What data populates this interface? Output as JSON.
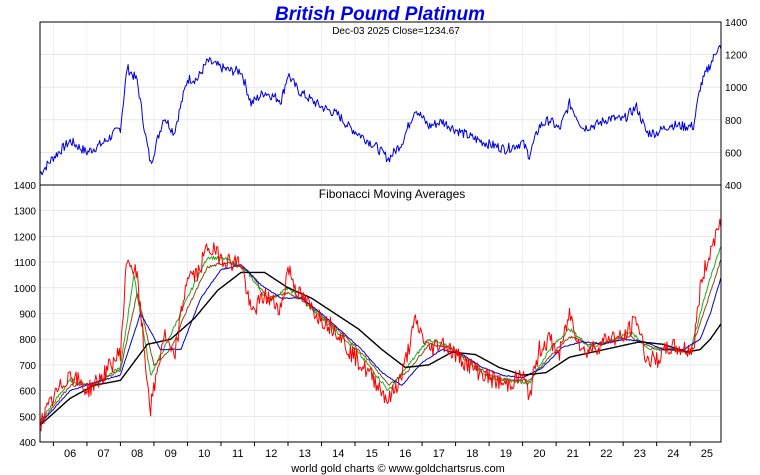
{
  "chart_data": [
    {
      "type": "line",
      "title": "British Pound Platinum",
      "subtitle": "Dec-03  2025   Close=1234.67",
      "xlabel": "",
      "ylabel": "",
      "x_ticks": [
        "06",
        "07",
        "08",
        "09",
        "10",
        "11",
        "12",
        "13",
        "14",
        "15",
        "16",
        "17",
        "18",
        "19",
        "20",
        "21",
        "22",
        "23",
        "24",
        "25"
      ],
      "ylim": [
        400,
        1400
      ],
      "y_ticks": [
        400,
        600,
        800,
        1000,
        1200,
        1400
      ],
      "y_tick_labels": [
        "400",
        "600",
        "800",
        "1000",
        "1200",
        "1400"
      ],
      "y_axis_side": "right",
      "grid": true,
      "series": [
        {
          "color": "#0000dd",
          "x": [
            2005.6,
            2006.0,
            2006.5,
            2007.0,
            2007.5,
            2008.0,
            2008.2,
            2008.5,
            2008.75,
            2008.9,
            2009.3,
            2009.6,
            2010.0,
            2010.3,
            2010.6,
            2011.0,
            2011.3,
            2011.6,
            2011.9,
            2012.3,
            2012.8,
            2013.0,
            2013.3,
            2013.7,
            2014.0,
            2014.5,
            2014.8,
            2015.2,
            2015.6,
            2016.0,
            2016.4,
            2016.8,
            2017.2,
            2017.6,
            2018.0,
            2018.5,
            2019.0,
            2019.5,
            2020.0,
            2020.2,
            2020.5,
            2020.8,
            2021.1,
            2021.4,
            2021.8,
            2022.2,
            2022.6,
            2023.0,
            2023.4,
            2023.7,
            2024.0,
            2024.4,
            2024.8,
            2025.1,
            2025.3,
            2025.5,
            2025.7,
            2025.85,
            2025.92
          ],
          "values": [
            470,
            570,
            670,
            600,
            660,
            750,
            1120,
            1040,
            700,
            530,
            820,
            720,
            1050,
            1050,
            1160,
            1120,
            1100,
            1100,
            900,
            970,
            920,
            1080,
            980,
            920,
            880,
            830,
            760,
            700,
            640,
            560,
            660,
            870,
            760,
            790,
            740,
            690,
            650,
            620,
            660,
            580,
            760,
            800,
            740,
            900,
            750,
            770,
            810,
            800,
            880,
            720,
            720,
            770,
            760,
            760,
            1000,
            1100,
            1180,
            1260,
            1234.67
          ]
        }
      ]
    },
    {
      "type": "line",
      "title": "Fibonacci Moving Averages",
      "xlabel": "",
      "ylabel": "",
      "x_ticks": [
        "06",
        "07",
        "08",
        "09",
        "10",
        "11",
        "12",
        "13",
        "14",
        "15",
        "16",
        "17",
        "18",
        "19",
        "20",
        "21",
        "22",
        "23",
        "24",
        "25"
      ],
      "ylim": [
        400,
        1400
      ],
      "y_ticks": [
        400,
        500,
        600,
        700,
        800,
        900,
        1000,
        1100,
        1200,
        1300,
        1400
      ],
      "y_tick_labels": [
        "400",
        "500",
        "600",
        "700",
        "800",
        "900",
        "1000",
        "1100",
        "1200",
        "1300",
        "1400"
      ],
      "y_axis_side": "left",
      "grid": true,
      "series": [
        {
          "color": "#ff0000",
          "x": [
            2005.6,
            2006.0,
            2006.5,
            2007.0,
            2007.5,
            2008.0,
            2008.2,
            2008.5,
            2008.75,
            2008.9,
            2009.3,
            2009.6,
            2010.0,
            2010.3,
            2010.6,
            2011.0,
            2011.3,
            2011.6,
            2011.9,
            2012.3,
            2012.8,
            2013.0,
            2013.3,
            2013.7,
            2014.0,
            2014.5,
            2014.8,
            2015.2,
            2015.6,
            2016.0,
            2016.4,
            2016.8,
            2017.2,
            2017.6,
            2018.0,
            2018.5,
            2019.0,
            2019.5,
            2020.0,
            2020.2,
            2020.5,
            2020.8,
            2021.1,
            2021.4,
            2021.8,
            2022.2,
            2022.6,
            2023.0,
            2023.4,
            2023.7,
            2024.0,
            2024.4,
            2024.8,
            2025.1,
            2025.3,
            2025.5,
            2025.7,
            2025.85,
            2025.92
          ],
          "values": [
            470,
            570,
            670,
            600,
            660,
            750,
            1120,
            1040,
            700,
            530,
            820,
            720,
            1050,
            1050,
            1160,
            1120,
            1100,
            1100,
            900,
            970,
            920,
            1080,
            980,
            920,
            880,
            830,
            760,
            700,
            640,
            560,
            660,
            870,
            760,
            790,
            740,
            690,
            650,
            620,
            660,
            580,
            760,
            800,
            740,
            900,
            750,
            770,
            810,
            800,
            880,
            720,
            720,
            770,
            760,
            760,
            1000,
            1100,
            1180,
            1260,
            1234.67
          ]
        },
        {
          "color": "#22aa22",
          "x": [
            2005.6,
            2006.5,
            2007.2,
            2008.0,
            2008.4,
            2008.9,
            2009.4,
            2010.0,
            2010.6,
            2011.2,
            2011.8,
            2012.4,
            2013.0,
            2013.6,
            2014.2,
            2014.8,
            2015.4,
            2016.0,
            2016.6,
            2017.2,
            2017.8,
            2018.4,
            2019.0,
            2019.6,
            2020.2,
            2020.8,
            2021.4,
            2022.0,
            2022.6,
            2023.2,
            2023.8,
            2024.4,
            2025.0,
            2025.4,
            2025.7,
            2025.92
          ],
          "values": [
            480,
            640,
            620,
            690,
            1050,
            660,
            790,
            960,
            1120,
            1110,
            1060,
            950,
            1000,
            930,
            860,
            790,
            700,
            600,
            700,
            800,
            770,
            710,
            650,
            640,
            630,
            760,
            840,
            770,
            790,
            830,
            760,
            760,
            750,
            950,
            1080,
            1160
          ]
        },
        {
          "color": "#8a4a1a",
          "x": [
            2005.6,
            2006.5,
            2007.2,
            2008.0,
            2008.5,
            2009.0,
            2009.5,
            2010.0,
            2010.6,
            2011.2,
            2011.8,
            2012.4,
            2013.0,
            2013.6,
            2014.2,
            2014.8,
            2015.4,
            2016.0,
            2016.6,
            2017.2,
            2017.8,
            2018.4,
            2019.0,
            2019.6,
            2020.2,
            2020.8,
            2021.4,
            2022.0,
            2022.6,
            2023.2,
            2023.8,
            2024.4,
            2025.0,
            2025.4,
            2025.7,
            2025.92
          ],
          "values": [
            475,
            620,
            625,
            680,
            980,
            700,
            760,
            920,
            1080,
            1100,
            1070,
            960,
            980,
            940,
            870,
            800,
            720,
            620,
            680,
            780,
            770,
            720,
            660,
            640,
            640,
            730,
            810,
            780,
            790,
            810,
            770,
            760,
            750,
            900,
            1020,
            1110
          ]
        },
        {
          "color": "#0000cc",
          "x": [
            2005.6,
            2006.5,
            2007.2,
            2008.0,
            2008.6,
            2009.2,
            2009.8,
            2010.4,
            2011.0,
            2011.6,
            2012.2,
            2012.8,
            2013.4,
            2014.0,
            2014.6,
            2015.2,
            2015.8,
            2016.4,
            2017.0,
            2017.6,
            2018.2,
            2018.8,
            2019.4,
            2020.0,
            2020.6,
            2021.2,
            2021.8,
            2022.4,
            2023.0,
            2023.6,
            2024.2,
            2024.8,
            2025.3,
            2025.6,
            2025.92
          ],
          "values": [
            470,
            600,
            630,
            660,
            900,
            760,
            760,
            960,
            1070,
            1090,
            1010,
            960,
            960,
            900,
            830,
            760,
            670,
            620,
            710,
            760,
            740,
            690,
            660,
            650,
            690,
            770,
            790,
            780,
            800,
            790,
            760,
            760,
            800,
            900,
            1040
          ]
        },
        {
          "color": "#000000",
          "x": [
            2005.6,
            2006.5,
            2007.2,
            2008.0,
            2008.8,
            2009.5,
            2010.2,
            2010.9,
            2011.6,
            2012.3,
            2013.0,
            2013.7,
            2014.4,
            2015.1,
            2015.8,
            2016.5,
            2017.2,
            2017.9,
            2018.6,
            2019.3,
            2020.0,
            2020.7,
            2021.4,
            2022.1,
            2022.8,
            2023.5,
            2024.2,
            2024.9,
            2025.3,
            2025.6,
            2025.92
          ],
          "values": [
            465,
            570,
            620,
            640,
            780,
            800,
            880,
            990,
            1060,
            1060,
            1000,
            960,
            900,
            840,
            760,
            690,
            700,
            750,
            740,
            690,
            660,
            670,
            730,
            750,
            770,
            790,
            780,
            750,
            760,
            800,
            860
          ]
        }
      ]
    }
  ],
  "footer": {
    "credit": "world gold charts © www.goldchartsrus.com"
  }
}
